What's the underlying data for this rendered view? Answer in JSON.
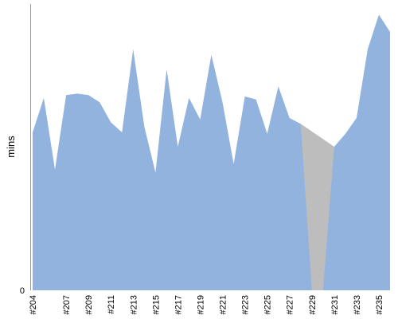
{
  "chart_data": {
    "type": "area",
    "title": "",
    "xlabel": "",
    "ylabel": "mins",
    "ylim": [
      0,
      100
    ],
    "grid": false,
    "legend": "none",
    "y_ticks": [
      "0"
    ],
    "colors": {
      "area": "#92b3de",
      "gap": "#bdbdbd",
      "axis": "#999999"
    },
    "x": [
      "#204",
      "#205",
      "#206",
      "#207",
      "#208",
      "#209",
      "#210",
      "#211",
      "#212",
      "#213",
      "#214",
      "#215",
      "#216",
      "#217",
      "#218",
      "#219",
      "#220",
      "#221",
      "#222",
      "#223",
      "#224",
      "#225",
      "#226",
      "#227",
      "#228",
      "#229",
      "#230",
      "#231",
      "#232",
      "#233",
      "#234",
      "#235",
      "#236"
    ],
    "x_tick_labels": [
      "#204",
      "#207",
      "#209",
      "#211",
      "#213",
      "#215",
      "#217",
      "#219",
      "#221",
      "#223",
      "#225",
      "#227",
      "#229",
      "#231",
      "#233",
      "#235"
    ],
    "values": [
      55,
      67,
      42,
      68,
      68.5,
      68,
      65.5,
      58.5,
      55,
      84,
      57,
      41,
      77,
      50,
      67,
      59.5,
      82,
      65.5,
      44,
      67.5,
      66.5,
      54.5,
      71,
      60,
      58,
      0,
      0,
      50,
      54.5,
      60,
      84,
      96,
      90
    ]
  }
}
